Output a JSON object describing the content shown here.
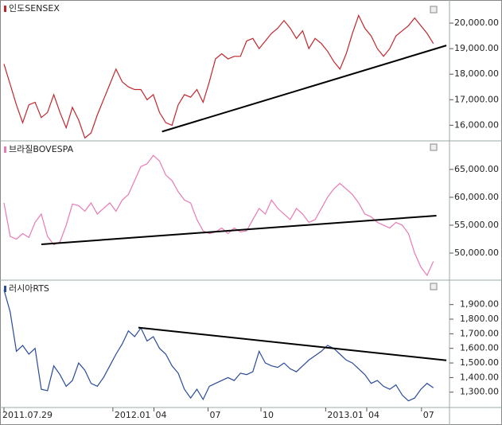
{
  "chart_data": [
    {
      "type": "line",
      "title": "인도SENSEX",
      "series": [
        {
          "color": "#c0272d",
          "values": [
            18400,
            17600,
            16800,
            16100,
            16800,
            16900,
            16300,
            16500,
            17200,
            16500,
            15900,
            16700,
            16200,
            15500,
            15700,
            16400,
            17000,
            17600,
            18200,
            17700,
            17500,
            17400,
            17400,
            17000,
            17200,
            16500,
            16100,
            16000,
            16800,
            17200,
            17100,
            17400,
            16900,
            17700,
            18600,
            18800,
            18600,
            18700,
            18700,
            19300,
            19400,
            19000,
            19300,
            19600,
            19800,
            20100,
            19800,
            19400,
            19700,
            19000,
            19400,
            19200,
            18900,
            18500,
            18200,
            18800,
            19600,
            20300,
            19800,
            19500,
            19000,
            18700,
            19000,
            19500,
            19700,
            19900,
            20200,
            19900,
            19600,
            19200
          ]
        }
      ],
      "trendline": {
        "x": [
          25.4,
          71.1
        ],
        "y": [
          15750,
          19125
        ]
      },
      "ylim": [
        15450,
        20750
      ],
      "yticks": [
        {
          "value": 16000,
          "label": "16,000.00"
        },
        {
          "value": 17000,
          "label": "17,000.00"
        },
        {
          "value": 18000,
          "label": "18,000.00"
        },
        {
          "value": 19000,
          "label": "19,000.00"
        },
        {
          "value": 20000,
          "label": "20,000.00"
        }
      ]
    },
    {
      "type": "line",
      "title": "브라질BOVESPA",
      "series": [
        {
          "color": "#e87ab4",
          "values": [
            59000,
            53000,
            52500,
            53500,
            52800,
            55500,
            57000,
            53000,
            51500,
            52000,
            55000,
            58800,
            58500,
            57500,
            59000,
            57000,
            58000,
            59000,
            57500,
            59500,
            60500,
            63000,
            65500,
            66000,
            67500,
            66500,
            64000,
            63000,
            61000,
            59500,
            59000,
            56000,
            54000,
            53500,
            53800,
            54500,
            53500,
            54500,
            53800,
            54000,
            56000,
            58000,
            57000,
            59500,
            58000,
            57000,
            56000,
            58000,
            57000,
            55500,
            56000,
            58000,
            60000,
            61500,
            62500,
            61500,
            60500,
            59000,
            57000,
            56500,
            55500,
            55000,
            54500,
            55500,
            55000,
            53500,
            50000,
            47500,
            46000,
            48500
          ]
        }
      ],
      "trendline": {
        "x": [
          6.0,
          69.5
        ],
        "y": [
          51570,
          56710
        ]
      },
      "ylim": [
        45150,
        69400
      ],
      "yticks": [
        {
          "value": 50000,
          "label": "50,000.00"
        },
        {
          "value": 55000,
          "label": "55,000.00"
        },
        {
          "value": 60000,
          "label": "60,000.00"
        },
        {
          "value": 65000,
          "label": "65,000.00"
        }
      ]
    },
    {
      "type": "line",
      "title": "러시아RTS",
      "series": [
        {
          "color": "#2a4a9a",
          "values": [
            2000,
            1850,
            1580,
            1620,
            1560,
            1600,
            1320,
            1310,
            1480,
            1420,
            1340,
            1380,
            1500,
            1450,
            1360,
            1340,
            1400,
            1480,
            1560,
            1630,
            1720,
            1680,
            1740,
            1650,
            1680,
            1600,
            1560,
            1480,
            1430,
            1320,
            1260,
            1320,
            1250,
            1340,
            1360,
            1380,
            1400,
            1380,
            1430,
            1420,
            1440,
            1580,
            1500,
            1480,
            1470,
            1500,
            1460,
            1440,
            1480,
            1520,
            1550,
            1580,
            1620,
            1600,
            1560,
            1520,
            1500,
            1460,
            1420,
            1360,
            1380,
            1340,
            1320,
            1350,
            1280,
            1240,
            1260,
            1320,
            1360,
            1330
          ]
        }
      ],
      "trendline": {
        "x": [
          21.6,
          71.1
        ],
        "y": [
          1742,
          1518
        ]
      },
      "ylim": [
        1195,
        2040
      ],
      "yticks": [
        {
          "value": 1300,
          "label": "1,300.00"
        },
        {
          "value": 1400,
          "label": "1,400.00"
        },
        {
          "value": 1500,
          "label": "1,500.00"
        },
        {
          "value": 1600,
          "label": "1,600.00"
        },
        {
          "value": 1700,
          "label": "1,700.00"
        },
        {
          "value": 1800,
          "label": "1,800.00"
        },
        {
          "value": 1900,
          "label": "1,900.00"
        }
      ],
      "xlim": [
        0,
        71.6
      ],
      "xticks": [
        {
          "value": 0,
          "label": "2011.07.29"
        },
        {
          "value": 17.5,
          "label": "2012.01"
        },
        {
          "value": 24.1,
          "label": "04"
        },
        {
          "value": 32.8,
          "label": "07"
        },
        {
          "value": 41.3,
          "label": "10"
        },
        {
          "value": 51.7,
          "label": "2013.01"
        },
        {
          "value": 58.3,
          "label": "04"
        },
        {
          "value": 67.1,
          "label": "07"
        }
      ]
    }
  ]
}
